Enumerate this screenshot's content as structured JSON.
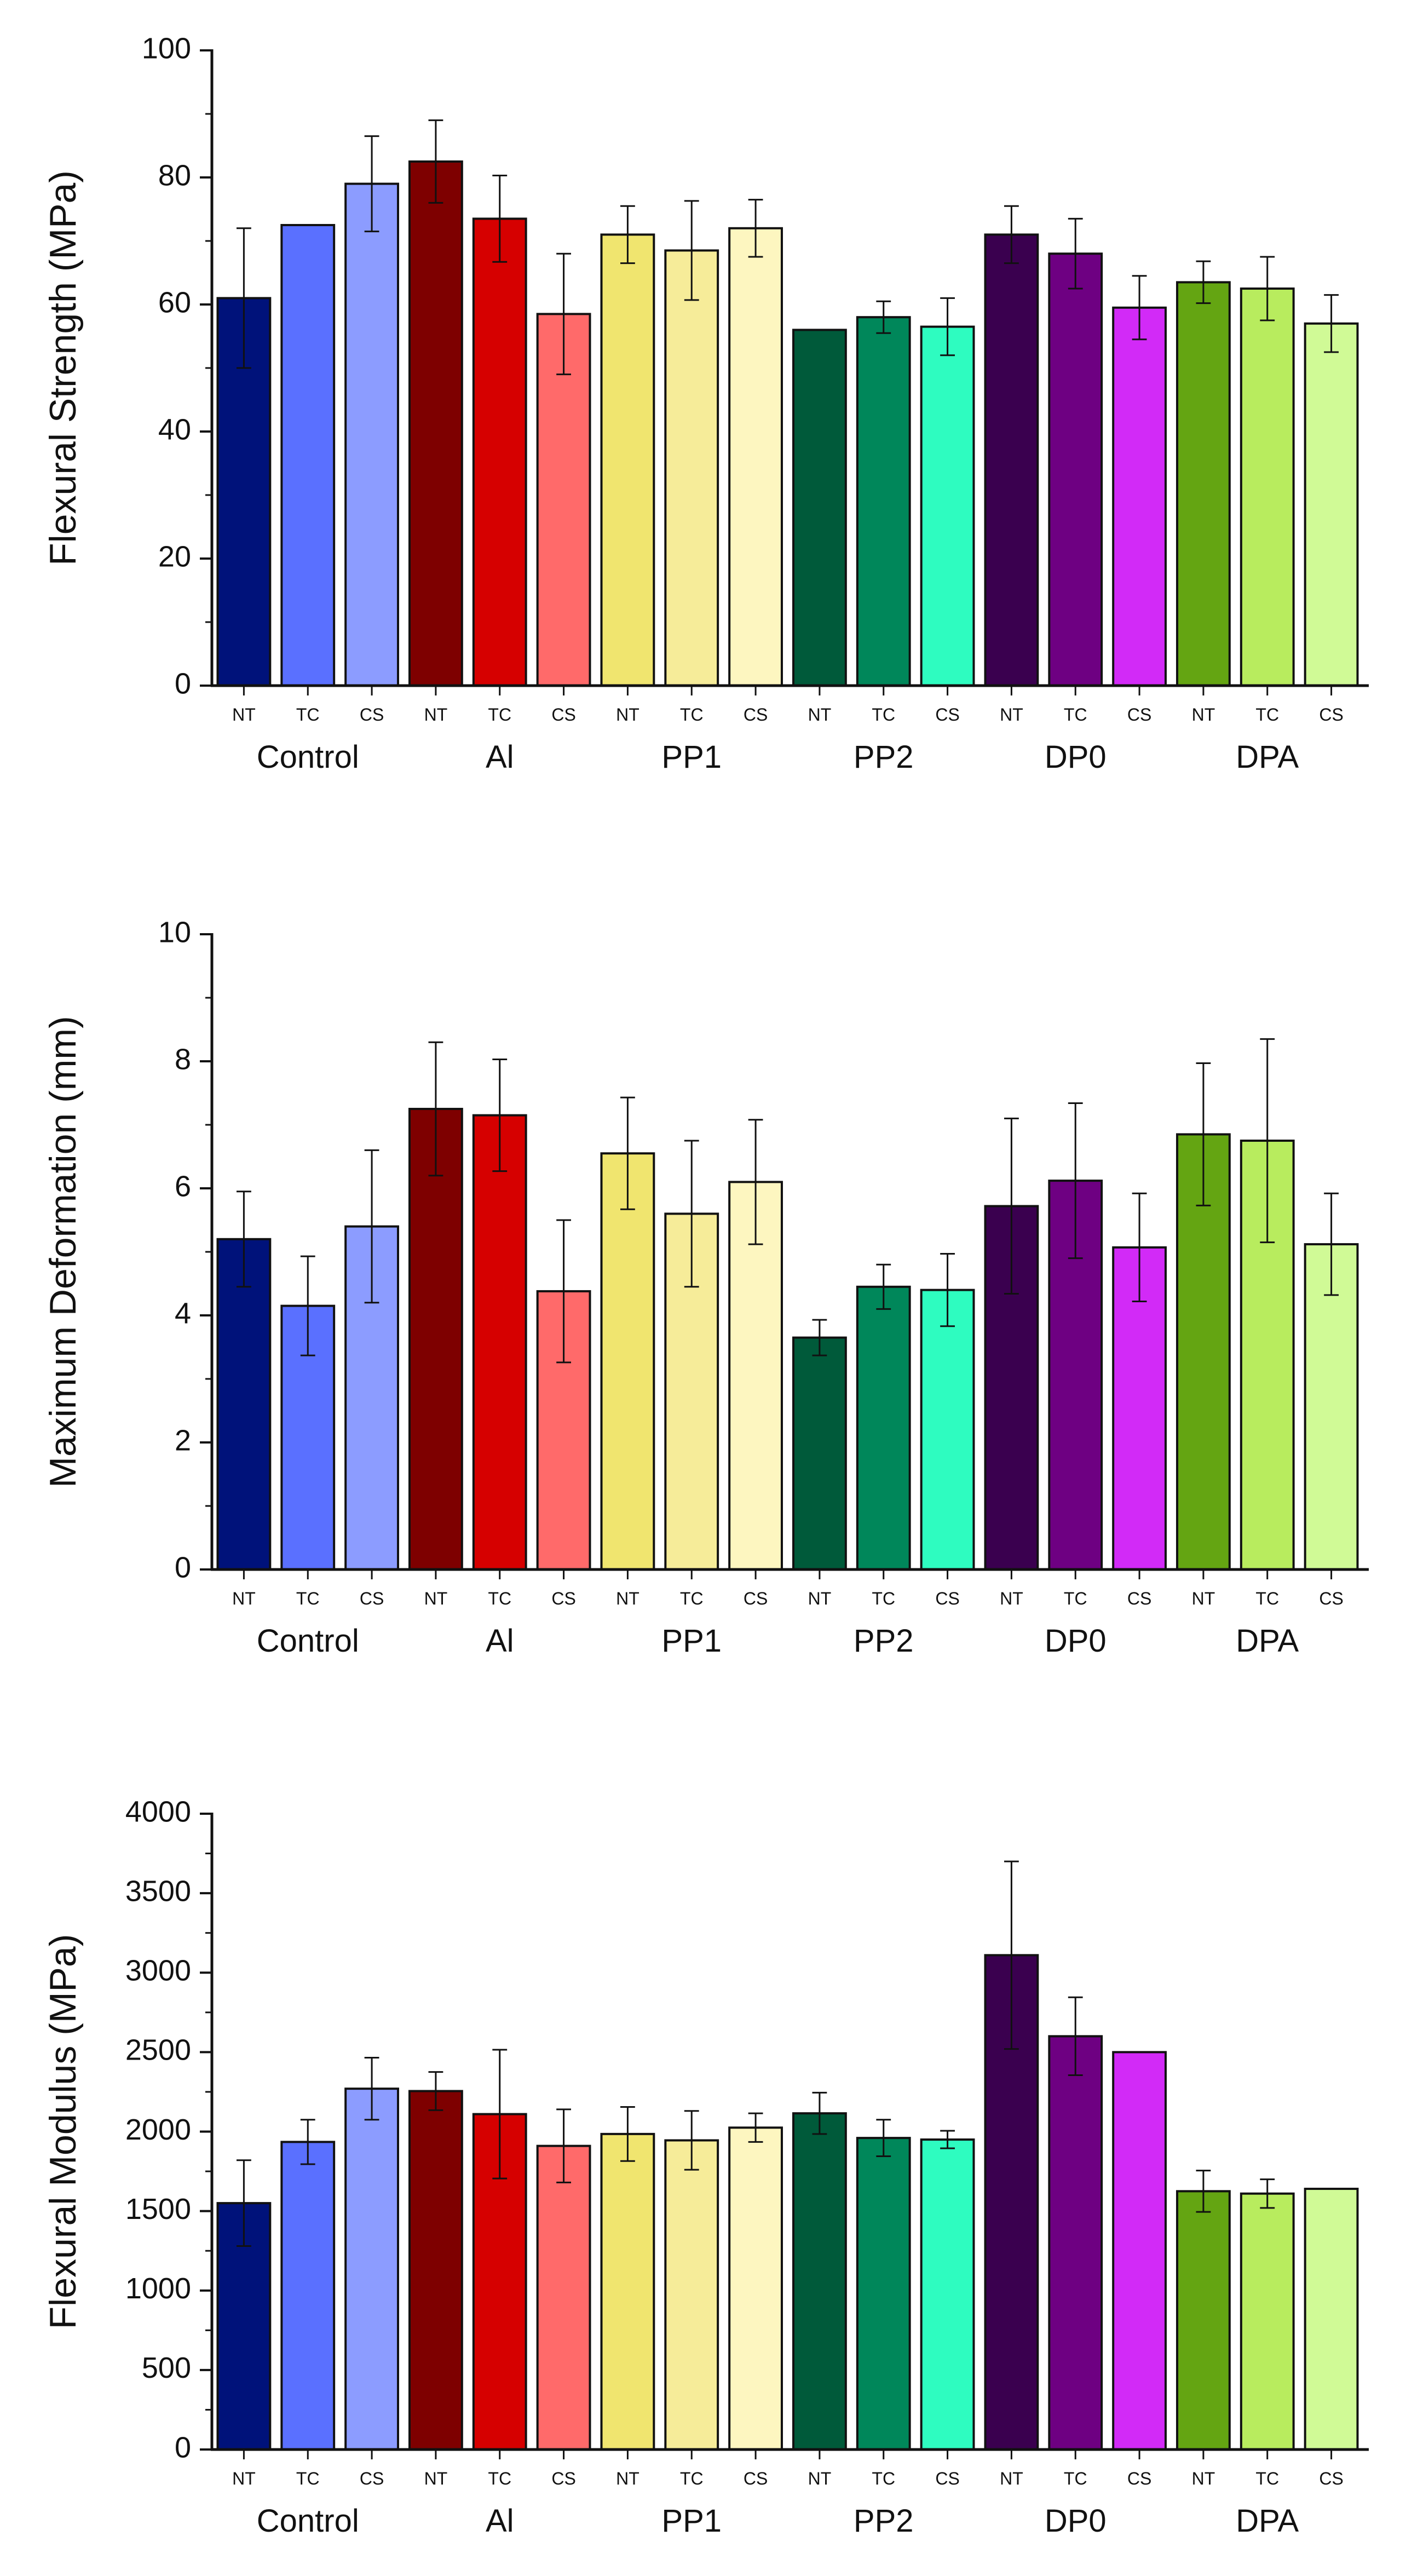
{
  "colors": {
    "axis": "#111111",
    "bar_stroke": "#111111",
    "error_bar": "#111111"
  },
  "chart_data": [
    {
      "type": "bar",
      "ylabel": "Flexural Strength (MPa)",
      "xlabel": "",
      "ylim": [
        0,
        100
      ],
      "yticks": [
        0,
        20,
        40,
        60,
        80,
        100
      ],
      "group_labels": [
        "Control",
        "Al",
        "PP1",
        "PP2",
        "DP0",
        "DPA"
      ],
      "sub_labels": [
        "NT",
        "TC",
        "CS"
      ],
      "bars": [
        {
          "group": "Control",
          "sub": "NT",
          "value": 61,
          "err": 11,
          "color": "#00127a"
        },
        {
          "group": "Control",
          "sub": "TC",
          "value": 72.5,
          "err": 0,
          "color": "#5a70ff"
        },
        {
          "group": "Control",
          "sub": "CS",
          "value": 79,
          "err": 7.5,
          "color": "#8c9cff"
        },
        {
          "group": "Al",
          "sub": "NT",
          "value": 82.5,
          "err": 6.5,
          "color": "#7e0000"
        },
        {
          "group": "Al",
          "sub": "TC",
          "value": 73.5,
          "err": 6.8,
          "color": "#d60000"
        },
        {
          "group": "Al",
          "sub": "CS",
          "value": 58.5,
          "err": 9.5,
          "color": "#ff6a6a"
        },
        {
          "group": "PP1",
          "sub": "NT",
          "value": 71,
          "err": 4.5,
          "color": "#f0e56f"
        },
        {
          "group": "PP1",
          "sub": "TC",
          "value": 68.5,
          "err": 7.8,
          "color": "#f6ec99"
        },
        {
          "group": "PP1",
          "sub": "CS",
          "value": 72,
          "err": 4.5,
          "color": "#fdf6c0"
        },
        {
          "group": "PP2",
          "sub": "NT",
          "value": 56,
          "err": 0,
          "color": "#005a3a"
        },
        {
          "group": "PP2",
          "sub": "TC",
          "value": 58,
          "err": 2.5,
          "color": "#00875a"
        },
        {
          "group": "PP2",
          "sub": "CS",
          "value": 56.5,
          "err": 4.5,
          "color": "#2efcc0"
        },
        {
          "group": "DP0",
          "sub": "NT",
          "value": 71,
          "err": 4.5,
          "color": "#3a004f"
        },
        {
          "group": "DP0",
          "sub": "TC",
          "value": 68,
          "err": 5.5,
          "color": "#6e0082"
        },
        {
          "group": "DP0",
          "sub": "CS",
          "value": 59.5,
          "err": 5,
          "color": "#d22af7"
        },
        {
          "group": "DPA",
          "sub": "NT",
          "value": 63.5,
          "err": 3.3,
          "color": "#64a512"
        },
        {
          "group": "DPA",
          "sub": "TC",
          "value": 62.5,
          "err": 5,
          "color": "#b8ec5e"
        },
        {
          "group": "DPA",
          "sub": "CS",
          "value": 57,
          "err": 4.5,
          "color": "#d0fa96"
        }
      ]
    },
    {
      "type": "bar",
      "ylabel": "Maximum Deformation (mm)",
      "xlabel": "",
      "ylim": [
        0,
        10
      ],
      "yticks": [
        0,
        2,
        4,
        6,
        8,
        10
      ],
      "group_labels": [
        "Control",
        "Al",
        "PP1",
        "PP2",
        "DP0",
        "DPA"
      ],
      "sub_labels": [
        "NT",
        "TC",
        "CS"
      ],
      "bars": [
        {
          "group": "Control",
          "sub": "NT",
          "value": 5.2,
          "err": 0.75,
          "color": "#00127a"
        },
        {
          "group": "Control",
          "sub": "TC",
          "value": 4.15,
          "err": 0.78,
          "color": "#5a70ff"
        },
        {
          "group": "Control",
          "sub": "CS",
          "value": 5.4,
          "err": 1.2,
          "color": "#8c9cff"
        },
        {
          "group": "Al",
          "sub": "NT",
          "value": 7.25,
          "err": 1.05,
          "color": "#7e0000"
        },
        {
          "group": "Al",
          "sub": "TC",
          "value": 7.15,
          "err": 0.88,
          "color": "#d60000"
        },
        {
          "group": "Al",
          "sub": "CS",
          "value": 4.38,
          "err": 1.12,
          "color": "#ff6a6a"
        },
        {
          "group": "PP1",
          "sub": "NT",
          "value": 6.55,
          "err": 0.88,
          "color": "#f0e56f"
        },
        {
          "group": "PP1",
          "sub": "TC",
          "value": 5.6,
          "err": 1.15,
          "color": "#f6ec99"
        },
        {
          "group": "PP1",
          "sub": "CS",
          "value": 6.1,
          "err": 0.98,
          "color": "#fdf6c0"
        },
        {
          "group": "PP2",
          "sub": "NT",
          "value": 3.65,
          "err": 0.28,
          "color": "#005a3a"
        },
        {
          "group": "PP2",
          "sub": "TC",
          "value": 4.45,
          "err": 0.35,
          "color": "#00875a"
        },
        {
          "group": "PP2",
          "sub": "CS",
          "value": 4.4,
          "err": 0.57,
          "color": "#2efcc0"
        },
        {
          "group": "DP0",
          "sub": "NT",
          "value": 5.72,
          "err": 1.38,
          "color": "#3a004f"
        },
        {
          "group": "DP0",
          "sub": "TC",
          "value": 6.12,
          "err": 1.22,
          "color": "#6e0082"
        },
        {
          "group": "DP0",
          "sub": "CS",
          "value": 5.07,
          "err": 0.85,
          "color": "#d22af7"
        },
        {
          "group": "DPA",
          "sub": "NT",
          "value": 6.85,
          "err": 1.12,
          "color": "#64a512"
        },
        {
          "group": "DPA",
          "sub": "TC",
          "value": 6.75,
          "err": 1.6,
          "color": "#b8ec5e"
        },
        {
          "group": "DPA",
          "sub": "CS",
          "value": 5.12,
          "err": 0.8,
          "color": "#d0fa96"
        }
      ]
    },
    {
      "type": "bar",
      "ylabel": "Flexural Modulus (MPa)",
      "xlabel": "",
      "ylim": [
        0,
        4000
      ],
      "yticks": [
        0,
        500,
        1000,
        1500,
        2000,
        2500,
        3000,
        3500,
        4000
      ],
      "group_labels": [
        "Control",
        "Al",
        "PP1",
        "PP2",
        "DP0",
        "DPA"
      ],
      "sub_labels": [
        "NT",
        "TC",
        "CS"
      ],
      "bars": [
        {
          "group": "Control",
          "sub": "NT",
          "value": 1550,
          "err": 270,
          "color": "#00127a"
        },
        {
          "group": "Control",
          "sub": "TC",
          "value": 1935,
          "err": 140,
          "color": "#5a70ff"
        },
        {
          "group": "Control",
          "sub": "CS",
          "value": 2270,
          "err": 195,
          "color": "#8c9cff"
        },
        {
          "group": "Al",
          "sub": "NT",
          "value": 2255,
          "err": 120,
          "color": "#7e0000"
        },
        {
          "group": "Al",
          "sub": "TC",
          "value": 2110,
          "err": 405,
          "color": "#d60000"
        },
        {
          "group": "Al",
          "sub": "CS",
          "value": 1910,
          "err": 230,
          "color": "#ff6a6a"
        },
        {
          "group": "PP1",
          "sub": "NT",
          "value": 1985,
          "err": 170,
          "color": "#f0e56f"
        },
        {
          "group": "PP1",
          "sub": "TC",
          "value": 1945,
          "err": 185,
          "color": "#f6ec99"
        },
        {
          "group": "PP1",
          "sub": "CS",
          "value": 2025,
          "err": 90,
          "color": "#fdf6c0"
        },
        {
          "group": "PP2",
          "sub": "NT",
          "value": 2115,
          "err": 130,
          "color": "#005a3a"
        },
        {
          "group": "PP2",
          "sub": "TC",
          "value": 1960,
          "err": 115,
          "color": "#00875a"
        },
        {
          "group": "PP2",
          "sub": "CS",
          "value": 1950,
          "err": 55,
          "color": "#2efcc0"
        },
        {
          "group": "DP0",
          "sub": "NT",
          "value": 3110,
          "err": 590,
          "color": "#3a004f"
        },
        {
          "group": "DP0",
          "sub": "TC",
          "value": 2600,
          "err": 245,
          "color": "#6e0082"
        },
        {
          "group": "DP0",
          "sub": "CS",
          "value": 2500,
          "err": 0,
          "color": "#d22af7"
        },
        {
          "group": "DPA",
          "sub": "NT",
          "value": 1625,
          "err": 130,
          "color": "#64a512"
        },
        {
          "group": "DPA",
          "sub": "TC",
          "value": 1610,
          "err": 90,
          "color": "#b8ec5e"
        },
        {
          "group": "DPA",
          "sub": "CS",
          "value": 1640,
          "err": 0,
          "color": "#d0fa96"
        }
      ]
    }
  ]
}
